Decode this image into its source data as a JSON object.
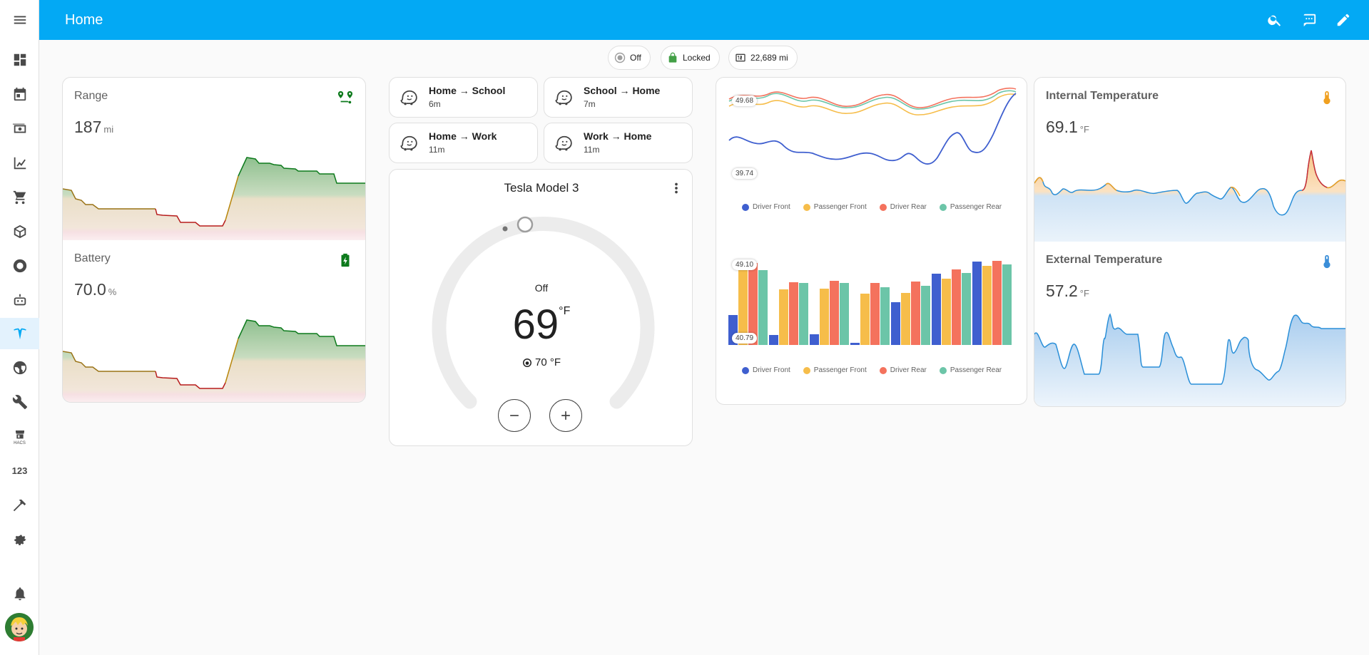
{
  "app": {
    "title": "Home",
    "sidebar_number_label": "123",
    "sidebar_hacs_label": "HACS"
  },
  "chips": {
    "hvac": {
      "label": "Off",
      "icon": "thermostat-off-icon"
    },
    "lock": {
      "label": "Locked",
      "icon": "lock-icon"
    },
    "odometer": {
      "label": "22,689 mi",
      "icon": "counter-icon"
    }
  },
  "range": {
    "name": "Range",
    "value": "187",
    "unit": "mi",
    "icon": "map-marker-path-icon"
  },
  "battery": {
    "name": "Battery",
    "value": "70.0",
    "unit": "%",
    "icon": "battery-charging-icon"
  },
  "routes": [
    {
      "name": "Home → School",
      "time": "6m"
    },
    {
      "name": "School → Home",
      "time": "7m"
    },
    {
      "name": "Home → Work",
      "time": "11m"
    },
    {
      "name": "Work → Home",
      "time": "11m"
    }
  ],
  "thermostat": {
    "name": "Tesla Model 3",
    "mode": "Off",
    "target": "69",
    "unit": "°F",
    "current": "70 °F"
  },
  "tire_line": {
    "max_label": "49.68",
    "min_label": "39.74",
    "legend": [
      "Driver Front",
      "Passenger Front",
      "Driver Rear",
      "Passenger Rear"
    ],
    "colors": [
      "#3f5fcf",
      "#f6bd4a",
      "#f4725d",
      "#6cc5a8"
    ]
  },
  "tire_bar": {
    "max_label": "49.10",
    "min_label": "40.79",
    "legend": [
      "Driver Front",
      "Passenger Front",
      "Driver Rear",
      "Passenger Rear"
    ],
    "colors": [
      "#3f5fcf",
      "#f6bd4a",
      "#f4725d",
      "#6cc5a8"
    ]
  },
  "internal_temp": {
    "name": "Internal Temperature",
    "value": "69.1",
    "unit": "°F",
    "icon": "thermometer-icon",
    "color": "#f0a020"
  },
  "external_temp": {
    "name": "External Temperature",
    "value": "57.2",
    "unit": "°F",
    "icon": "thermometer-icon",
    "color": "#3b8ed8"
  },
  "colors": {
    "accent": "#03a9f4",
    "green": "#0d7a1c"
  }
}
